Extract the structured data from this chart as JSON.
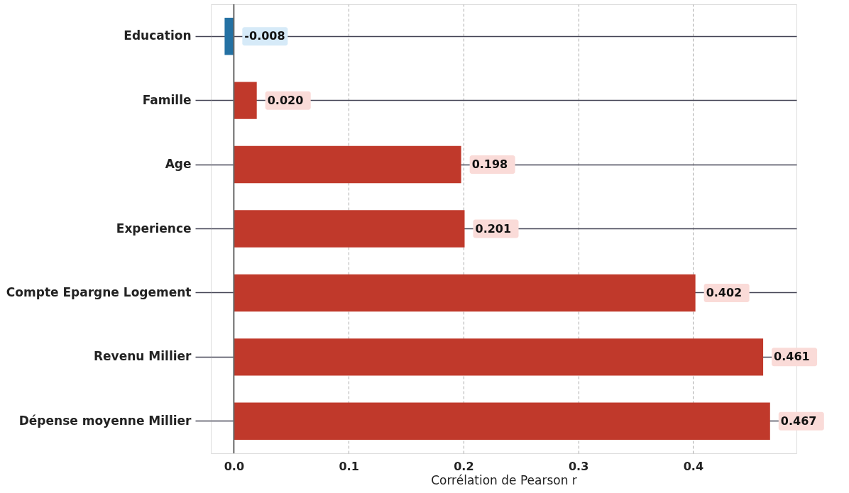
{
  "chart_data": {
    "type": "bar",
    "orientation": "horizontal",
    "xlabel": "Corrélation de Pearson r",
    "categories": [
      "Education",
      "Famille",
      "Age",
      "Experience",
      "Compte Epargne Logement",
      "Revenu Millier",
      "Dépense moyenne Millier"
    ],
    "values": [
      -0.008,
      0.02,
      0.198,
      0.201,
      0.402,
      0.461,
      0.467
    ],
    "value_labels": [
      "-0.008",
      "0.020",
      "0.198",
      "0.201",
      "0.402",
      "0.461",
      "0.467"
    ],
    "colors": [
      "#2471a3",
      "#c0392b",
      "#c0392b",
      "#c0392b",
      "#c0392b",
      "#c0392b",
      "#c0392b"
    ],
    "xlim": [
      -0.02,
      0.49
    ],
    "xticks": [
      {
        "value": 0,
        "label": "0.0"
      },
      {
        "value": 0.1,
        "label": "0.1"
      },
      {
        "value": 0.2,
        "label": "0.2"
      },
      {
        "value": 0.3,
        "label": "0.3"
      },
      {
        "value": 0.4,
        "label": "0.4"
      }
    ],
    "ref_lines": [
      {
        "axis": "x",
        "value": 0,
        "color": "#666666"
      }
    ],
    "grid": true
  }
}
